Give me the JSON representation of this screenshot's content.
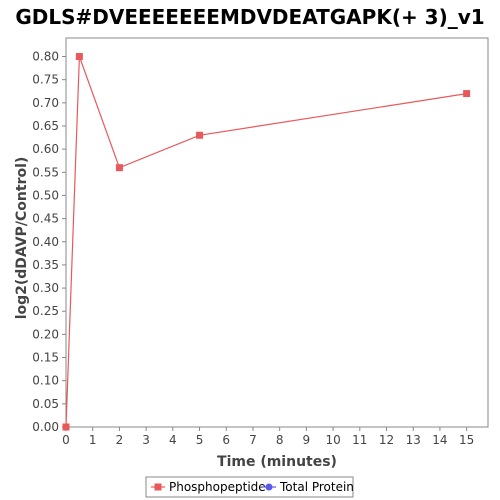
{
  "chart_data": {
    "type": "line",
    "title": "GDLS#DVEEEEEEEMDVDEATGAPK(+ 3)_v1",
    "xlabel": "Time (minutes)",
    "ylabel": "log2(dDAVP/Control)",
    "xlim": [
      0,
      15.8
    ],
    "ylim": [
      0,
      0.84
    ],
    "xticks": [
      0,
      1,
      2,
      3,
      4,
      5,
      6,
      7,
      8,
      9,
      10,
      11,
      12,
      13,
      14,
      15
    ],
    "yticks": [
      0.0,
      0.05,
      0.1,
      0.15,
      0.2,
      0.25,
      0.3,
      0.35,
      0.4,
      0.45,
      0.5,
      0.55,
      0.6,
      0.65,
      0.7,
      0.75,
      0.8
    ],
    "grid": false,
    "legend_position": "bottom-center",
    "series": [
      {
        "name": "Phosphopeptide",
        "color": "#e8595b",
        "marker": "square",
        "x": [
          0,
          0.5,
          2,
          5,
          15
        ],
        "y": [
          0.0,
          0.8,
          0.56,
          0.63,
          0.72
        ]
      },
      {
        "name": "Total Protein",
        "color": "#5a5ae8",
        "marker": "circle",
        "x": [],
        "y": []
      }
    ]
  }
}
